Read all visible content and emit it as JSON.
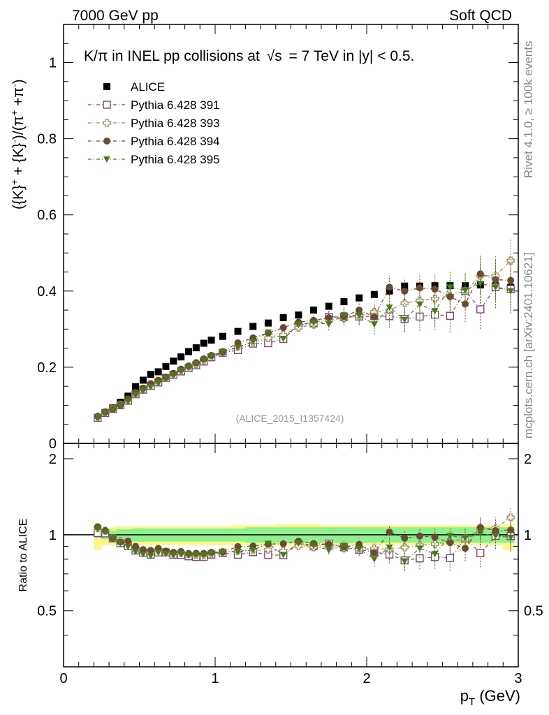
{
  "header": {
    "left": "7000 GeV pp",
    "right": "Soft QCD"
  },
  "side_labels": {
    "rivet": "Rivet 4.1.0, ≥ 100k events",
    "mcplots": "mcplots.cern.ch [arXiv:2401.10621]"
  },
  "chart_data": {
    "type": "scatter",
    "title": "K/π in INEL pp collisions at √s = 7 TeV in |y| < 0.5.",
    "title_parts": {
      "a": "K/π in INEL pp collisions at",
      "sqrt": "√s",
      "b": "=  7 TeV in |y| < 0.5."
    },
    "ylabel": "({K}+ + {K}-)/(π+ +π-)",
    "ylabel_parts": {
      "a": "({K}",
      "sup1": "+",
      "b": " + {K}",
      "sup2": "-",
      "c": ")/(π",
      "sup3": "+",
      "d": " +π",
      "sup4": "-",
      "e": ")"
    },
    "xlabel": "p_T (GeV)",
    "xlabel_parts": {
      "p": "p",
      "sub": "T",
      "unit": " (GeV)"
    },
    "ratio_ylabel": "Ratio to ALICE",
    "watermark": "(ALICE_2015_I1357424)",
    "xlim": [
      0,
      3
    ],
    "ylim": [
      0,
      1.1
    ],
    "ratio_ylim": [
      0.3,
      2.3
    ],
    "x_ticks": [
      0,
      1,
      2,
      3
    ],
    "x_tick_labels": [
      "0",
      "1",
      "2",
      "3"
    ],
    "y_ticks": [
      0,
      0.2,
      0.4,
      0.6,
      0.8,
      1
    ],
    "y_tick_labels": [
      "0",
      "0.2",
      "0.4",
      "0.6",
      "0.8",
      "1"
    ],
    "ratio_ticks": [
      0.5,
      1,
      2
    ],
    "ratio_tick_labels": [
      "0.5",
      "1",
      "2"
    ],
    "x": [
      0.225,
      0.275,
      0.325,
      0.375,
      0.425,
      0.475,
      0.525,
      0.575,
      0.625,
      0.675,
      0.725,
      0.775,
      0.825,
      0.875,
      0.925,
      0.975,
      1.05,
      1.15,
      1.25,
      1.35,
      1.45,
      1.55,
      1.65,
      1.75,
      1.85,
      1.95,
      2.05,
      2.15,
      2.25,
      2.35,
      2.45,
      2.55,
      2.65,
      2.75,
      2.85,
      2.95
    ],
    "series": [
      {
        "name": "ALICE",
        "marker": "square-filled",
        "color": "#000000",
        "values": [
          0.066,
          0.079,
          0.093,
          0.108,
          0.124,
          0.149,
          0.166,
          0.181,
          0.188,
          0.202,
          0.216,
          0.227,
          0.241,
          0.251,
          0.263,
          0.271,
          0.281,
          0.294,
          0.307,
          0.316,
          0.33,
          0.337,
          0.35,
          0.36,
          0.372,
          0.382,
          0.391,
          0.4,
          0.413,
          0.413,
          0.414,
          0.414,
          0.414,
          0.416,
          0.414,
          0.41
        ]
      },
      {
        "name": "Pythia 6.428 391",
        "marker": "square-open",
        "color": "#7a4a6a",
        "values": [
          0.067,
          0.08,
          0.09,
          0.1,
          0.112,
          0.129,
          0.141,
          0.151,
          0.16,
          0.172,
          0.18,
          0.189,
          0.198,
          0.205,
          0.215,
          0.226,
          0.238,
          0.245,
          0.262,
          0.263,
          0.274,
          0.31,
          0.315,
          0.332,
          0.332,
          0.333,
          0.334,
          0.334,
          0.327,
          0.333,
          0.338,
          0.335,
          0.4,
          0.352,
          0.41,
          0.405
        ]
      },
      {
        "name": "Pythia 6.428 393",
        "marker": "cross-open",
        "color": "#9a8a5a",
        "values": [
          0.07,
          0.082,
          0.09,
          0.102,
          0.115,
          0.13,
          0.143,
          0.154,
          0.163,
          0.172,
          0.182,
          0.192,
          0.202,
          0.208,
          0.218,
          0.228,
          0.24,
          0.254,
          0.266,
          0.276,
          0.285,
          0.304,
          0.312,
          0.324,
          0.329,
          0.334,
          0.345,
          0.35,
          0.368,
          0.375,
          0.38,
          0.388,
          0.4,
          0.44,
          0.44,
          0.48
        ]
      },
      {
        "name": "Pythia 6.428 394",
        "marker": "circle-filled",
        "color": "#6b4a33",
        "values": [
          0.071,
          0.082,
          0.09,
          0.101,
          0.117,
          0.134,
          0.145,
          0.157,
          0.166,
          0.174,
          0.184,
          0.195,
          0.203,
          0.212,
          0.222,
          0.231,
          0.24,
          0.264,
          0.277,
          0.29,
          0.304,
          0.318,
          0.323,
          0.33,
          0.333,
          0.35,
          0.332,
          0.41,
          0.4,
          0.408,
          0.405,
          0.385,
          0.366,
          0.445,
          0.43,
          0.428
        ]
      },
      {
        "name": "Pythia 6.428 395",
        "marker": "triangle-down-filled",
        "color": "#4a7a1a",
        "values": [
          0.07,
          0.081,
          0.09,
          0.1,
          0.111,
          0.128,
          0.139,
          0.149,
          0.16,
          0.17,
          0.18,
          0.191,
          0.2,
          0.209,
          0.219,
          0.229,
          0.24,
          0.252,
          0.267,
          0.292,
          0.275,
          0.312,
          0.317,
          0.313,
          0.337,
          0.336,
          0.313,
          0.357,
          0.325,
          0.365,
          0.348,
          0.41,
          0.402,
          0.42,
          0.41,
          0.4
        ]
      }
    ],
    "ratio_band": {
      "inner_low": [
        0.97,
        0.96,
        0.96,
        0.95,
        0.95,
        0.94,
        0.94,
        0.94,
        0.94,
        0.94,
        0.94,
        0.94,
        0.94,
        0.94,
        0.94,
        0.94,
        0.94,
        0.94,
        0.93,
        0.93,
        0.93,
        0.93,
        0.93,
        0.93,
        0.93,
        0.93,
        0.93,
        0.93,
        0.93,
        0.93,
        0.93,
        0.93,
        0.93,
        0.93,
        0.93,
        0.93
      ],
      "inner_high": [
        1.03,
        1.04,
        1.04,
        1.05,
        1.05,
        1.06,
        1.06,
        1.06,
        1.06,
        1.06,
        1.06,
        1.06,
        1.06,
        1.06,
        1.06,
        1.06,
        1.06,
        1.06,
        1.07,
        1.07,
        1.07,
        1.07,
        1.07,
        1.07,
        1.07,
        1.07,
        1.07,
        1.07,
        1.07,
        1.07,
        1.07,
        1.07,
        1.07,
        1.07,
        1.07,
        1.07
      ],
      "outer_low": [
        0.87,
        0.91,
        0.91,
        0.91,
        0.91,
        0.91,
        0.91,
        0.91,
        0.91,
        0.91,
        0.91,
        0.91,
        0.91,
        0.91,
        0.91,
        0.91,
        0.91,
        0.91,
        0.91,
        0.91,
        0.91,
        0.9,
        0.9,
        0.91,
        0.91,
        0.91,
        0.91,
        0.91,
        0.91,
        0.91,
        0.91,
        0.91,
        0.91,
        0.91,
        0.91,
        0.87
      ],
      "outer_high": [
        1.1,
        1.06,
        1.07,
        1.08,
        1.08,
        1.08,
        1.08,
        1.08,
        1.08,
        1.08,
        1.08,
        1.08,
        1.08,
        1.08,
        1.08,
        1.08,
        1.08,
        1.09,
        1.09,
        1.09,
        1.1,
        1.1,
        1.1,
        1.09,
        1.09,
        1.09,
        1.09,
        1.09,
        1.09,
        1.09,
        1.09,
        1.09,
        1.09,
        1.09,
        1.09,
        1.1
      ]
    }
  }
}
